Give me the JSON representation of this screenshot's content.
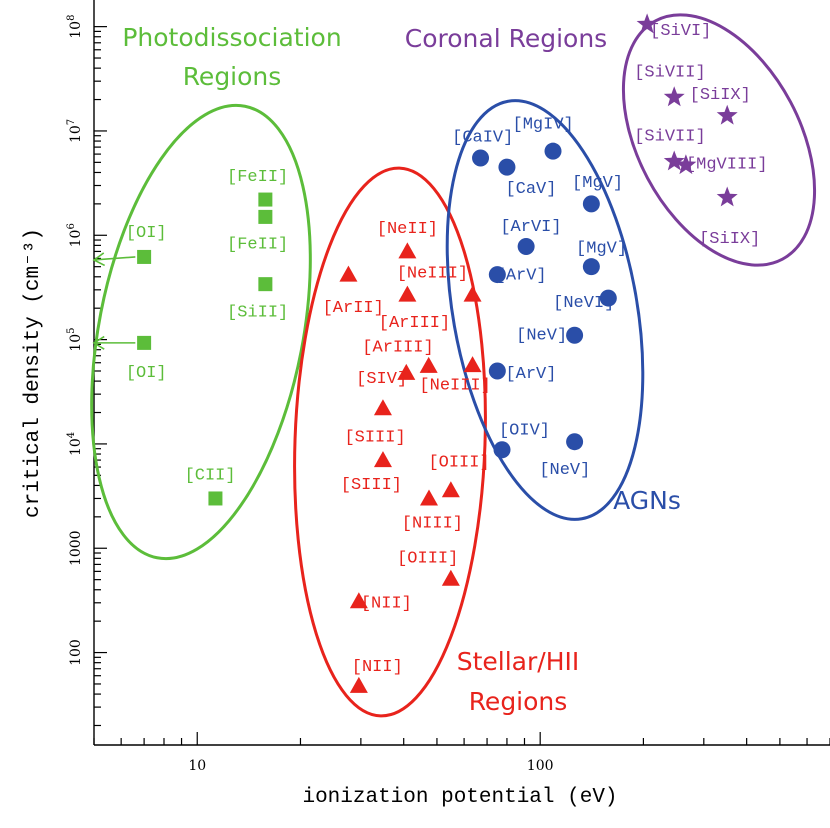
{
  "chart_data": {
    "type": "scatter",
    "title": "",
    "xlabel": "ionization potential (eV)",
    "ylabel": "critical density (cm⁻³)",
    "xscale": "log",
    "yscale": "log",
    "xlim": [
      5,
      700
    ],
    "ylim": [
      13,
      180000000
    ],
    "x_ticks": [
      {
        "value": 10,
        "label": "10"
      },
      {
        "value": 100,
        "label": "100"
      }
    ],
    "y_ticks": [
      {
        "value": 100,
        "label": "100",
        "rotated": true
      },
      {
        "value": 1000,
        "label": "1000",
        "rotated": true
      },
      {
        "value": 10000,
        "base": "10",
        "exp": "4"
      },
      {
        "value": 100000,
        "base": "10",
        "exp": "5"
      },
      {
        "value": 1000000,
        "base": "10",
        "exp": "6"
      },
      {
        "value": 10000000,
        "base": "10",
        "exp": "7"
      },
      {
        "value": 100000000,
        "base": "10",
        "exp": "8"
      }
    ],
    "series": [
      {
        "name": "Photodissociation Regions",
        "marker": "square",
        "color": "#5cbd3a",
        "points": [
          {
            "x": 7.0,
            "y": 620000
          },
          {
            "x": 7.0,
            "y": 93000
          },
          {
            "x": 15.8,
            "y": 2200000
          },
          {
            "x": 15.8,
            "y": 1500000
          },
          {
            "x": 15.8,
            "y": 340000
          },
          {
            "x": 11.3,
            "y": 3000
          }
        ],
        "labels": [
          {
            "text": "[OI]",
            "x": 7.1,
            "y": 1100000
          },
          {
            "text": "[OI]",
            "x": 7.1,
            "y": 50000
          },
          {
            "text": "[FeII]",
            "x": 15.0,
            "y": 3800000
          },
          {
            "text": "[FeII]",
            "x": 15.0,
            "y": 850000
          },
          {
            "text": "[SiII]",
            "x": 15.0,
            "y": 190000
          },
          {
            "text": "[CII]",
            "x": 10.9,
            "y": 5200
          }
        ],
        "region_label": [
          "Photodissociation",
          "Regions"
        ]
      },
      {
        "name": "Stellar/HII Regions",
        "marker": "triangle",
        "color": "#e8231c",
        "points": [
          {
            "x": 41.0,
            "y": 700000
          },
          {
            "x": 27.6,
            "y": 420000
          },
          {
            "x": 41.0,
            "y": 270000
          },
          {
            "x": 63.5,
            "y": 270000
          },
          {
            "x": 40.7,
            "y": 48000
          },
          {
            "x": 47.3,
            "y": 56000
          },
          {
            "x": 63.5,
            "y": 57000
          },
          {
            "x": 34.8,
            "y": 22000
          },
          {
            "x": 34.8,
            "y": 7000
          },
          {
            "x": 54.9,
            "y": 3600
          },
          {
            "x": 47.4,
            "y": 3000
          },
          {
            "x": 54.9,
            "y": 510
          },
          {
            "x": 29.6,
            "y": 310
          },
          {
            "x": 29.6,
            "y": 48
          }
        ],
        "labels": [
          {
            "text": "[NeII]",
            "x": 41.0,
            "y": 1200000
          },
          {
            "text": "[ArII]",
            "x": 28.5,
            "y": 210000
          },
          {
            "text": "[NeIII]",
            "x": 48.5,
            "y": 450000
          },
          {
            "text": "[ArIII]",
            "x": 43.0,
            "y": 150000
          },
          {
            "text": "[ArIII]",
            "x": 38.5,
            "y": 88000
          },
          {
            "text": "[SIV]",
            "x": 34.5,
            "y": 44000
          },
          {
            "text": "[NeIII]",
            "x": 56.5,
            "y": 38000
          },
          {
            "text": "[SIII]",
            "x": 33.0,
            "y": 12000
          },
          {
            "text": "[SIII]",
            "x": 32.2,
            "y": 4200
          },
          {
            "text": "[OIII]",
            "x": 58.0,
            "y": 6900
          },
          {
            "text": "[NIII]",
            "x": 48.5,
            "y": 1800
          },
          {
            "text": "[OIII]",
            "x": 47.0,
            "y": 830
          },
          {
            "text": "[NII]",
            "x": 35.6,
            "y": 310
          },
          {
            "text": "[NII]",
            "x": 33.5,
            "y": 76
          }
        ],
        "region_label": [
          "Stellar/HII",
          "Regions"
        ]
      },
      {
        "name": "AGNs",
        "marker": "circle",
        "color": "#2a4ea8",
        "points": [
          {
            "x": 67.0,
            "y": 5500000
          },
          {
            "x": 80.0,
            "y": 4500000
          },
          {
            "x": 109.0,
            "y": 6400000
          },
          {
            "x": 141.0,
            "y": 2000000
          },
          {
            "x": 91.0,
            "y": 780000
          },
          {
            "x": 141.0,
            "y": 500000
          },
          {
            "x": 75.0,
            "y": 420000
          },
          {
            "x": 158.0,
            "y": 250000
          },
          {
            "x": 126.0,
            "y": 110000
          },
          {
            "x": 75.0,
            "y": 50000
          },
          {
            "x": 126.0,
            "y": 10500
          },
          {
            "x": 77.4,
            "y": 8800
          }
        ],
        "labels": [
          {
            "text": "[CaIV]",
            "x": 68.0,
            "y": 9000000
          },
          {
            "text": "[MgIV]",
            "x": 102.0,
            "y": 12000000
          },
          {
            "text": "[CaV]",
            "x": 94.0,
            "y": 2900000
          },
          {
            "text": "[MgV]",
            "x": 147.0,
            "y": 3300000
          },
          {
            "text": "[ArVI]",
            "x": 94.0,
            "y": 1250000
          },
          {
            "text": "[MgV]",
            "x": 151.0,
            "y": 780000
          },
          {
            "text": "[ArV]",
            "x": 88.0,
            "y": 430000
          },
          {
            "text": "[NeVI]",
            "x": 134.0,
            "y": 235000
          },
          {
            "text": "[NeV]",
            "x": 101.0,
            "y": 115000
          },
          {
            "text": "[ArV]",
            "x": 94.0,
            "y": 49000
          },
          {
            "text": "[OIV]",
            "x": 90.0,
            "y": 14000
          },
          {
            "text": "[NeV]",
            "x": 118.0,
            "y": 5900
          }
        ],
        "region_label": [
          "AGNs"
        ]
      },
      {
        "name": "Coronal Regions",
        "marker": "star",
        "color": "#7a3d9a",
        "points": [
          {
            "x": 205.0,
            "y": 105000000
          },
          {
            "x": 246.0,
            "y": 21000000
          },
          {
            "x": 351.0,
            "y": 14000000
          },
          {
            "x": 246.0,
            "y": 5100000
          },
          {
            "x": 266.0,
            "y": 4700000
          },
          {
            "x": 351.0,
            "y": 2300000
          }
        ],
        "labels": [
          {
            "text": "[SiVI]",
            "x": 257.0,
            "y": 95000000
          },
          {
            "text": "[SiVII]",
            "x": 239.0,
            "y": 38000000
          },
          {
            "text": "[SiIX]",
            "x": 335.0,
            "y": 23000000
          },
          {
            "text": "[SiVII]",
            "x": 239.0,
            "y": 9200000
          },
          {
            "text": "[MgVIII]",
            "x": 350.0,
            "y": 5000000
          },
          {
            "text": "[SiIX]",
            "x": 357.0,
            "y": 960000
          }
        ],
        "region_label": [
          "Coronal Regions"
        ]
      }
    ],
    "annotations": [
      {
        "type": "arrow",
        "color": "#5cbd3a",
        "from": {
          "x": 6.6,
          "y": 620000
        },
        "to": {
          "x": 5.0,
          "y": 580000
        }
      },
      {
        "type": "arrow",
        "color": "#5cbd3a",
        "from": {
          "x": 6.6,
          "y": 93000
        },
        "to": {
          "x": 5.0,
          "y": 93000
        }
      }
    ]
  }
}
